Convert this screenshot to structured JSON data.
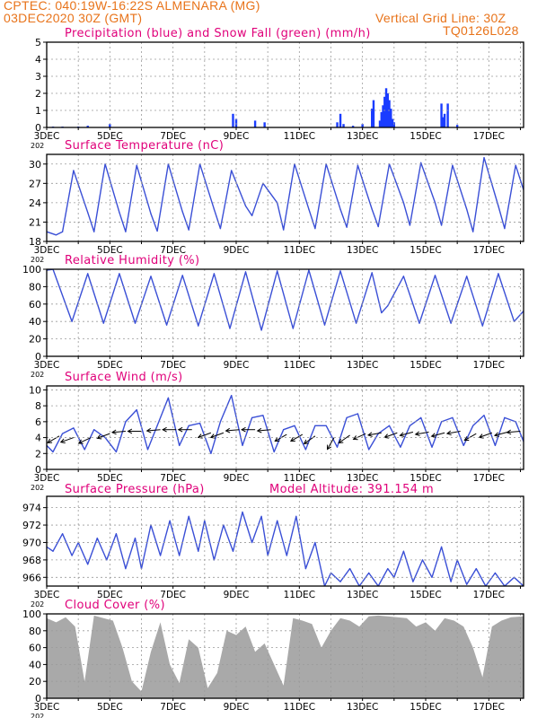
{
  "header": {
    "line1_left": "CPTEC:   040:19W-16:22S   ALMENARA (MG)",
    "line2_left": "03DEC2020 30Z (GMT)",
    "line1_right": "Vertical Grid Line: 30Z",
    "line2_right": "TQ0126L028"
  },
  "colors": {
    "title": "#e0007a",
    "header": "#e8731a",
    "line": "#3a4fd6",
    "precip": "#1a3cff",
    "snow": "#22aa22",
    "cloud": "#a9a9a9",
    "wind_arrow": "#000000",
    "grid": "#9a9a9a"
  },
  "x_axis": {
    "tick_labels": [
      "3DEC",
      "5DEC",
      "7DEC",
      "9DEC",
      "11DEC",
      "13DEC",
      "15DEC",
      "17DEC"
    ],
    "tick_days": [
      3,
      5,
      7,
      9,
      11,
      13,
      15,
      17
    ],
    "range_days": [
      3,
      18.1
    ],
    "grid_step_days": 1,
    "sub_label": "202"
  },
  "chart_data": [
    {
      "id": "precip",
      "type": "bar",
      "title": "Precipitation (blue) and Snow Fall (green) (mm/h)",
      "ylim": [
        0,
        5
      ],
      "yticks": [
        0,
        1,
        2,
        3,
        4,
        5
      ],
      "grid": true,
      "series": [
        {
          "name": "Precipitation",
          "points": [
            [
              3.2,
              0.05
            ],
            [
              3.5,
              0.05
            ],
            [
              4.0,
              0.05
            ],
            [
              4.3,
              0.1
            ],
            [
              5.0,
              0.2
            ],
            [
              8.9,
              0.8
            ],
            [
              9.0,
              0.5
            ],
            [
              9.6,
              0.4
            ],
            [
              9.9,
              0.3
            ],
            [
              12.2,
              0.3
            ],
            [
              12.3,
              0.8
            ],
            [
              12.4,
              0.2
            ],
            [
              12.7,
              0.1
            ],
            [
              13.0,
              0.2
            ],
            [
              13.3,
              1.1
            ],
            [
              13.35,
              1.6
            ],
            [
              13.55,
              0.4
            ],
            [
              13.6,
              0.9
            ],
            [
              13.65,
              1.3
            ],
            [
              13.7,
              1.8
            ],
            [
              13.75,
              2.3
            ],
            [
              13.8,
              2.0
            ],
            [
              13.85,
              1.6
            ],
            [
              13.9,
              1.1
            ],
            [
              13.95,
              0.5
            ],
            [
              14.0,
              0.3
            ],
            [
              15.5,
              1.4
            ],
            [
              15.55,
              0.6
            ],
            [
              15.6,
              0.8
            ],
            [
              15.7,
              1.4
            ],
            [
              16.0,
              0.15
            ]
          ]
        },
        {
          "name": "Snow Fall",
          "points": []
        }
      ]
    },
    {
      "id": "temp",
      "type": "line",
      "title": "Surface Temperature (nC)",
      "ylim": [
        18,
        31.5
      ],
      "yticks": [
        18,
        21,
        24,
        27,
        30
      ],
      "grid": true,
      "x": [
        3.0,
        3.3,
        3.5,
        3.85,
        4.3,
        4.5,
        4.85,
        5.3,
        5.5,
        5.85,
        6.3,
        6.5,
        6.85,
        7.3,
        7.5,
        7.85,
        8.3,
        8.5,
        8.85,
        9.3,
        9.5,
        9.85,
        10.3,
        10.5,
        10.85,
        11.3,
        11.5,
        11.85,
        12.3,
        12.5,
        12.85,
        13.3,
        13.5,
        13.85,
        14.3,
        14.5,
        14.85,
        15.3,
        15.5,
        15.85,
        16.3,
        16.5,
        16.85,
        17.3,
        17.5,
        17.85,
        18.1
      ],
      "values": [
        19.5,
        19.0,
        19.5,
        29.0,
        22.5,
        19.5,
        30.0,
        22.5,
        19.5,
        29.8,
        22.3,
        19.6,
        30.0,
        22.6,
        19.8,
        30.0,
        23.0,
        20.0,
        29.0,
        23.5,
        22.0,
        27.0,
        24.0,
        19.8,
        30.0,
        23.0,
        20.0,
        30.0,
        23.0,
        20.2,
        29.8,
        23.0,
        20.3,
        30.0,
        24.0,
        20.5,
        30.2,
        24.0,
        20.5,
        29.8,
        23.0,
        19.5,
        31.0,
        23.5,
        20.0,
        29.8,
        26.0
      ]
    },
    {
      "id": "humidity",
      "type": "line",
      "title": "Relative Humidity (%)",
      "ylim": [
        0,
        100
      ],
      "yticks": [
        0,
        20,
        40,
        60,
        80,
        100
      ],
      "grid": true,
      "x": [
        3.0,
        3.2,
        3.8,
        4.3,
        4.8,
        5.3,
        5.8,
        6.3,
        6.8,
        7.3,
        7.8,
        8.3,
        8.8,
        9.3,
        9.8,
        10.3,
        10.8,
        11.3,
        11.8,
        12.3,
        12.8,
        13.3,
        13.6,
        13.8,
        14.3,
        14.8,
        15.3,
        15.8,
        16.3,
        16.8,
        17.3,
        17.8,
        18.1
      ],
      "values": [
        99,
        100,
        40,
        95,
        38,
        95,
        38,
        92,
        36,
        93,
        35,
        95,
        32,
        97,
        30,
        98,
        32,
        99,
        36,
        98,
        38,
        96,
        50,
        58,
        92,
        38,
        93,
        38,
        92,
        35,
        95,
        40,
        52
      ]
    },
    {
      "id": "wind",
      "type": "line",
      "title": "Surface Wind (m/s)",
      "ylim": [
        0,
        10.5
      ],
      "yticks": [
        0,
        2,
        4,
        6,
        8,
        10
      ],
      "grid": true,
      "x": [
        3.0,
        3.2,
        3.5,
        3.85,
        4.2,
        4.5,
        4.85,
        5.2,
        5.5,
        5.85,
        6.2,
        6.5,
        6.85,
        7.2,
        7.5,
        7.85,
        8.2,
        8.5,
        8.85,
        9.2,
        9.5,
        9.85,
        10.2,
        10.5,
        10.85,
        11.2,
        11.5,
        11.85,
        12.2,
        12.5,
        12.85,
        13.2,
        13.5,
        13.85,
        14.2,
        14.5,
        14.85,
        15.2,
        15.5,
        15.85,
        16.2,
        16.5,
        16.85,
        17.2,
        17.5,
        17.85,
        18.1
      ],
      "values": [
        3.0,
        2.2,
        4.5,
        5.2,
        2.5,
        5.0,
        4.0,
        2.2,
        6.0,
        7.5,
        2.5,
        5.5,
        9.0,
        3.0,
        5.5,
        5.8,
        2.0,
        6.0,
        9.3,
        3.0,
        6.5,
        6.8,
        2.2,
        5.0,
        5.5,
        2.5,
        5.5,
        5.5,
        2.8,
        6.5,
        7.0,
        2.5,
        4.5,
        5.5,
        2.8,
        5.5,
        6.5,
        2.8,
        6.0,
        6.5,
        3.0,
        5.5,
        6.8,
        3.0,
        6.5,
        6.0,
        3.5
      ],
      "arrows": [
        {
          "x": 3.4,
          "y": 4.2,
          "dir": 210
        },
        {
          "x": 3.85,
          "y": 4.0,
          "dir": 200
        },
        {
          "x": 4.4,
          "y": 4.0,
          "dir": 205
        },
        {
          "x": 5.0,
          "y": 4.5,
          "dir": 200
        },
        {
          "x": 5.5,
          "y": 4.8,
          "dir": 185
        },
        {
          "x": 6.0,
          "y": 4.8,
          "dir": 180
        },
        {
          "x": 6.6,
          "y": 5.0,
          "dir": 185
        },
        {
          "x": 7.1,
          "y": 5.0,
          "dir": 180
        },
        {
          "x": 7.6,
          "y": 5.0,
          "dir": 180
        },
        {
          "x": 8.2,
          "y": 4.6,
          "dir": 200
        },
        {
          "x": 8.6,
          "y": 4.6,
          "dir": 200
        },
        {
          "x": 9.1,
          "y": 5.0,
          "dir": 185
        },
        {
          "x": 9.6,
          "y": 5.0,
          "dir": 180
        },
        {
          "x": 10.1,
          "y": 5.0,
          "dir": 185
        },
        {
          "x": 10.6,
          "y": 4.4,
          "dir": 210
        },
        {
          "x": 11.1,
          "y": 4.4,
          "dir": 210
        },
        {
          "x": 11.5,
          "y": 4.2,
          "dir": 215
        },
        {
          "x": 12.1,
          "y": 4.0,
          "dir": 240
        },
        {
          "x": 12.6,
          "y": 4.3,
          "dir": 215
        },
        {
          "x": 13.1,
          "y": 4.5,
          "dir": 205
        },
        {
          "x": 13.6,
          "y": 4.6,
          "dir": 190
        },
        {
          "x": 14.1,
          "y": 4.6,
          "dir": 200
        },
        {
          "x": 14.6,
          "y": 4.7,
          "dir": 195
        },
        {
          "x": 15.1,
          "y": 4.7,
          "dir": 190
        },
        {
          "x": 15.6,
          "y": 4.6,
          "dir": 195
        },
        {
          "x": 16.1,
          "y": 4.8,
          "dir": 190
        },
        {
          "x": 16.6,
          "y": 4.5,
          "dir": 210
        },
        {
          "x": 17.1,
          "y": 4.6,
          "dir": 200
        },
        {
          "x": 17.6,
          "y": 4.7,
          "dir": 195
        },
        {
          "x": 18.0,
          "y": 4.8,
          "dir": 185
        }
      ]
    },
    {
      "id": "pressure",
      "type": "line",
      "title": "Surface Pressure (hPa)",
      "annotation": "Model Altitude: 391.154 m",
      "ylim": [
        965,
        975.3
      ],
      "yticks": [
        966,
        968,
        970,
        972,
        974
      ],
      "grid": true,
      "x": [
        3.0,
        3.2,
        3.5,
        3.8,
        4.0,
        4.3,
        4.6,
        4.9,
        5.2,
        5.5,
        5.8,
        6.0,
        6.3,
        6.6,
        6.9,
        7.2,
        7.5,
        7.8,
        8.0,
        8.3,
        8.6,
        8.9,
        9.2,
        9.5,
        9.8,
        10.0,
        10.3,
        10.6,
        10.9,
        11.2,
        11.5,
        11.8,
        12.0,
        12.3,
        12.6,
        12.9,
        13.2,
        13.5,
        13.8,
        14.0,
        14.3,
        14.6,
        14.9,
        15.2,
        15.5,
        15.8,
        16.0,
        16.3,
        16.6,
        16.9,
        17.2,
        17.5,
        17.8,
        18.1
      ],
      "values": [
        969.5,
        969.0,
        971.0,
        968.5,
        970.0,
        967.5,
        970.5,
        968.0,
        971.0,
        967.0,
        970.5,
        967.0,
        972.0,
        968.5,
        972.5,
        968.5,
        973.0,
        969.0,
        972.5,
        968.0,
        972.0,
        969.0,
        973.5,
        970.0,
        973.0,
        968.5,
        972.5,
        968.5,
        973.0,
        967.0,
        970.0,
        965.0,
        966.5,
        965.5,
        967.0,
        965.0,
        966.5,
        965.0,
        967.0,
        966.0,
        969.0,
        965.5,
        968.0,
        966.0,
        969.5,
        965.5,
        968.0,
        965.2,
        967.0,
        965.0,
        966.5,
        965.0,
        966.0,
        965.0
      ]
    },
    {
      "id": "cloud",
      "type": "area",
      "title": "Cloud Cover (%)",
      "ylim": [
        0,
        100
      ],
      "yticks": [
        0,
        20,
        40,
        60,
        80,
        100
      ],
      "grid": true,
      "x": [
        3.0,
        3.3,
        3.6,
        3.9,
        4.2,
        4.5,
        4.8,
        5.1,
        5.4,
        5.7,
        6.0,
        6.3,
        6.6,
        6.9,
        7.2,
        7.5,
        7.8,
        8.1,
        8.4,
        8.7,
        9.0,
        9.3,
        9.6,
        9.9,
        10.2,
        10.5,
        10.8,
        11.1,
        11.4,
        11.7,
        12.0,
        12.3,
        12.6,
        12.9,
        13.2,
        13.5,
        13.8,
        14.1,
        14.4,
        14.7,
        15.0,
        15.3,
        15.6,
        15.9,
        16.2,
        16.5,
        16.8,
        17.1,
        17.4,
        17.7,
        18.1
      ],
      "values": [
        95,
        90,
        96,
        85,
        20,
        98,
        95,
        92,
        60,
        20,
        8,
        55,
        90,
        40,
        18,
        70,
        60,
        12,
        30,
        80,
        75,
        85,
        55,
        65,
        40,
        15,
        95,
        92,
        88,
        60,
        80,
        95,
        92,
        85,
        97,
        98,
        97,
        96,
        95,
        85,
        90,
        80,
        95,
        92,
        85,
        60,
        25,
        85,
        92,
        96,
        97
      ]
    }
  ]
}
